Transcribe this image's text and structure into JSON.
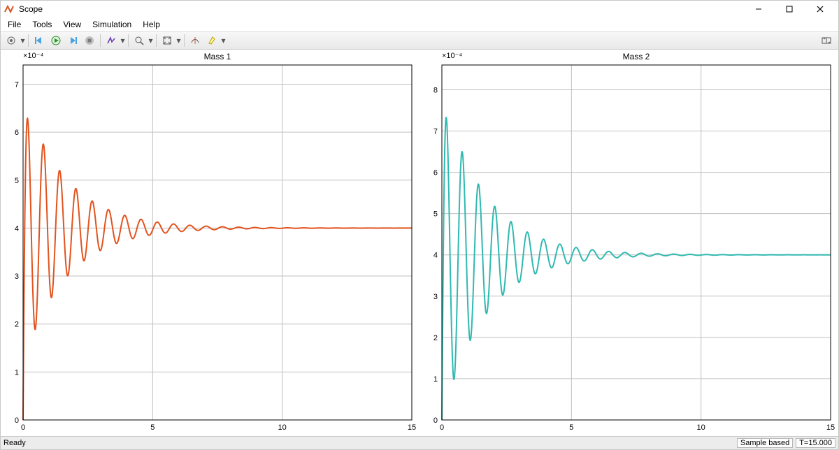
{
  "window": {
    "title": "Scope",
    "icon_color": "#d9541e"
  },
  "menus": [
    "File",
    "Tools",
    "View",
    "Simulation",
    "Help"
  ],
  "statusbar": {
    "ready": "Ready",
    "mode": "Sample based",
    "time": "T=15.000"
  },
  "plotting": {
    "signal": {
      "omega": 10.0,
      "zeta": 0.06,
      "settle": 0.0004,
      "dt": 0.01,
      "n": 1500
    },
    "charts": [
      {
        "title": "Mass 1",
        "exponent_label": "×10⁻⁴",
        "color": "#e2531e",
        "line_width": 2.0,
        "amp": 0.00028,
        "background": "#ffffff",
        "grid_color": "#c0c0c0",
        "xlim": [
          0,
          15
        ],
        "xticks": [
          0,
          5,
          10,
          15
        ],
        "ylim": [
          0.0,
          0.00074
        ],
        "yticks": [
          0.0,
          0.0001,
          0.0002,
          0.0003,
          0.0004,
          0.0005,
          0.0006,
          0.0007
        ],
        "ytick_labels": [
          "0",
          "1",
          "2",
          "3",
          "4",
          "5",
          "6",
          "7"
        ]
      },
      {
        "title": "Mass 2",
        "exponent_label": "×10⁻⁴",
        "color": "#30b9b0",
        "line_width": 2.0,
        "amp": 0.0004,
        "background": "#ffffff",
        "grid_color": "#c0c0c0",
        "xlim": [
          0,
          15
        ],
        "xticks": [
          0,
          5,
          10,
          15
        ],
        "ylim": [
          0.0,
          0.00086
        ],
        "yticks": [
          0.0,
          0.0001,
          0.0002,
          0.0003,
          0.0004,
          0.0005,
          0.0006,
          0.0007,
          0.0008
        ],
        "ytick_labels": [
          "0",
          "1",
          "2",
          "3",
          "4",
          "5",
          "6",
          "7",
          "8"
        ]
      }
    ]
  }
}
